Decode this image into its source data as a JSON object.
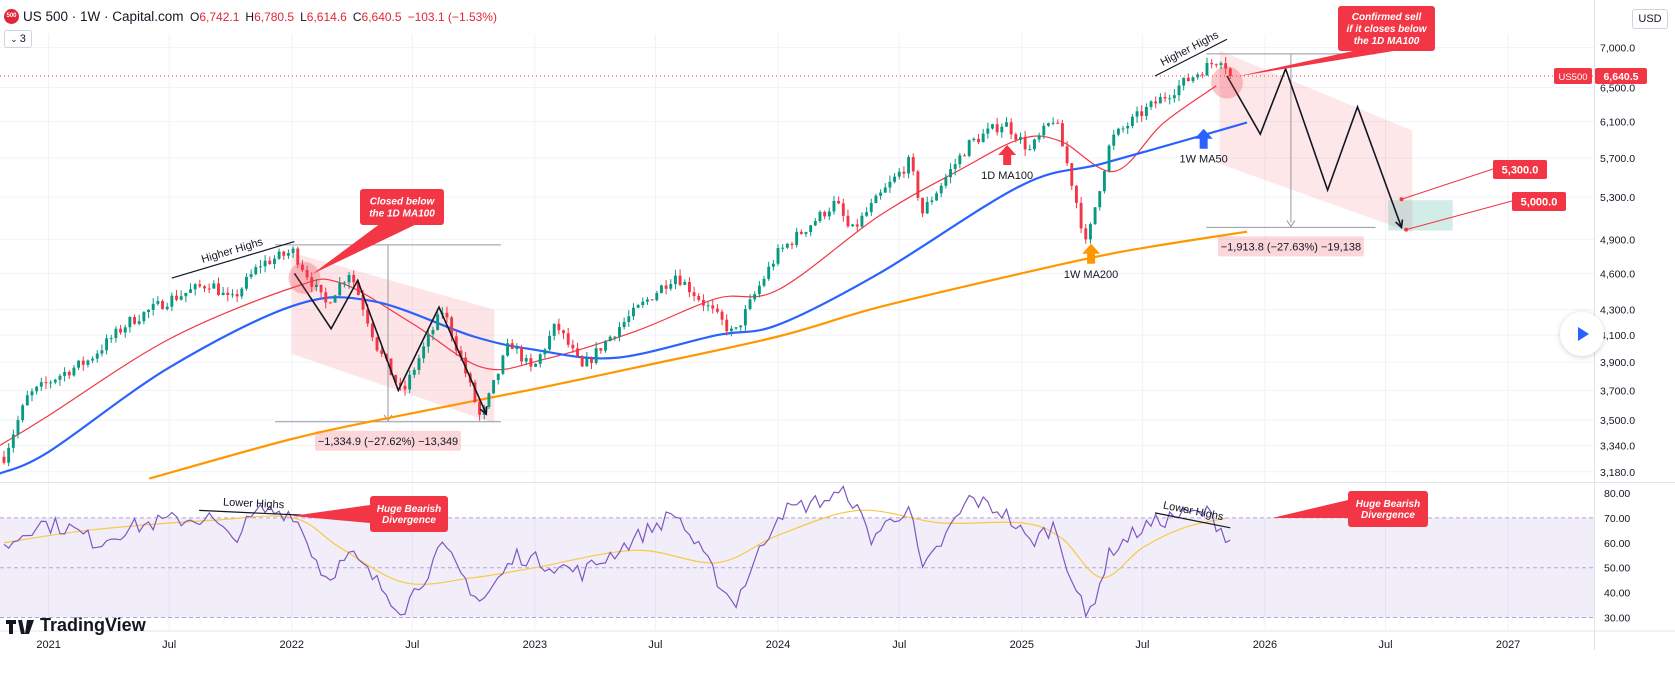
{
  "header": {
    "logo_text": "500",
    "title": "US 500 · 1W · Capital.com",
    "ohlc": [
      {
        "k": "O",
        "v": "6,742.1"
      },
      {
        "k": "H",
        "v": "6,780.5"
      },
      {
        "k": "L",
        "v": "6,614.6"
      },
      {
        "k": "C",
        "v": "6,640.5"
      },
      {
        "k": "",
        "v": "−103.1 (−1.53%)"
      }
    ],
    "indicator_count": "3",
    "currency": "USD"
  },
  "colors": {
    "up": "#089981",
    "down": "#f23645",
    "ma100_1d": "#f23645",
    "ma50_1w": "#2962ff",
    "ma200_1w": "#ff9800",
    "rsi": "#7e57c2",
    "rsi_ma": "#f7c948",
    "rsi_band": "#7e57c2",
    "callout": "#f23645"
  },
  "brand": "TradingView",
  "chart_data": [
    {
      "type": "candlestick",
      "symbol": "US 500",
      "interval": "1W",
      "y_scale": "log",
      "ylim": [
        3120,
        7180
      ],
      "y_ticks": [
        3180,
        3340,
        3500,
        3700,
        3900,
        4100,
        4300,
        4600,
        4900,
        5300,
        5700,
        6100,
        6500,
        7000
      ],
      "y_tick_labels": [
        "3,180.0",
        "3,340.0",
        "3,500.0",
        "3,700.0",
        "3,900.0",
        "4,100.0",
        "4,300.0",
        "4,600.0",
        "4,900.0",
        "5,300.0",
        "5,700.0",
        "6,100.0",
        "6,500.0",
        "7,000.0"
      ],
      "x_range": [
        "2020-10-20",
        "2027-05-10"
      ],
      "x_ticks": [
        {
          "date": "2021-01-01",
          "label": "2021"
        },
        {
          "date": "2021-07-01",
          "label": "Jul"
        },
        {
          "date": "2022-01-01",
          "label": "2022"
        },
        {
          "date": "2022-07-01",
          "label": "Jul"
        },
        {
          "date": "2023-01-01",
          "label": "2023"
        },
        {
          "date": "2023-07-01",
          "label": "Jul"
        },
        {
          "date": "2024-01-01",
          "label": "2024"
        },
        {
          "date": "2024-07-01",
          "label": "Jul"
        },
        {
          "date": "2025-01-01",
          "label": "2025"
        },
        {
          "date": "2025-07-01",
          "label": "Jul"
        },
        {
          "date": "2026-01-01",
          "label": "2026"
        },
        {
          "date": "2026-07-01",
          "label": "Jul"
        },
        {
          "date": "2027-01-01",
          "label": "2027"
        }
      ],
      "price_path": [
        [
          "2020-10-26",
          3270
        ],
        [
          "2020-12-01",
          3660
        ],
        [
          "2021-01-15",
          3800
        ],
        [
          "2021-03-01",
          3910
        ],
        [
          "2021-05-01",
          4200
        ],
        [
          "2021-07-01",
          4380
        ],
        [
          "2021-09-01",
          4520
        ],
        [
          "2021-10-01",
          4360
        ],
        [
          "2021-11-15",
          4680
        ],
        [
          "2022-01-03",
          4790
        ],
        [
          "2022-02-20",
          4340
        ],
        [
          "2022-03-29",
          4620
        ],
        [
          "2022-05-10",
          4000
        ],
        [
          "2022-06-16",
          3670
        ],
        [
          "2022-08-16",
          4300
        ],
        [
          "2022-10-12",
          3500
        ],
        [
          "2022-11-25",
          4050
        ],
        [
          "2022-12-28",
          3830
        ],
        [
          "2023-02-02",
          4180
        ],
        [
          "2023-03-13",
          3850
        ],
        [
          "2023-05-01",
          4130
        ],
        [
          "2023-07-31",
          4590
        ],
        [
          "2023-10-27",
          4100
        ],
        [
          "2023-12-31",
          4770
        ],
        [
          "2024-03-28",
          5250
        ],
        [
          "2024-04-19",
          4960
        ],
        [
          "2024-07-16",
          5660
        ],
        [
          "2024-08-05",
          5150
        ],
        [
          "2024-10-15",
          5860
        ],
        [
          "2024-12-06",
          6090
        ],
        [
          "2025-01-13",
          5780
        ],
        [
          "2025-02-19",
          6150
        ],
        [
          "2025-03-13",
          5560
        ],
        [
          "2025-04-08",
          4830
        ],
        [
          "2025-05-15",
          5900
        ],
        [
          "2025-06-30",
          6200
        ],
        [
          "2025-08-15",
          6460
        ],
        [
          "2025-10-08",
          6770
        ],
        [
          "2025-10-29",
          6880
        ],
        [
          "2025-11-10",
          6640
        ]
      ],
      "last_price": 6640.5,
      "last_price_label": "6,640.5",
      "symbol_tag": "US500",
      "moving_averages": [
        {
          "name": "1D MA100",
          "label": "1D MA100",
          "points": [
            [
              "2020-10-20",
              3340
            ],
            [
              "2021-01-01",
              3530
            ],
            [
              "2021-07-01",
              4070
            ],
            [
              "2022-01-03",
              4480
            ],
            [
              "2022-03-15",
              4520
            ],
            [
              "2022-07-01",
              4190
            ],
            [
              "2022-10-15",
              3860
            ],
            [
              "2023-01-15",
              3920
            ],
            [
              "2023-06-01",
              4130
            ],
            [
              "2023-10-01",
              4390
            ],
            [
              "2024-01-01",
              4460
            ],
            [
              "2024-06-01",
              5120
            ],
            [
              "2024-10-01",
              5580
            ],
            [
              "2025-01-01",
              5910
            ],
            [
              "2025-03-01",
              5880
            ],
            [
              "2025-05-20",
              5560
            ],
            [
              "2025-08-01",
              6080
            ],
            [
              "2025-10-20",
              6520
            ]
          ]
        },
        {
          "name": "1W MA50",
          "label": "1W MA50",
          "points": [
            [
              "2020-10-20",
              3170
            ],
            [
              "2021-01-01",
              3300
            ],
            [
              "2021-07-01",
              3860
            ],
            [
              "2022-01-03",
              4330
            ],
            [
              "2022-05-01",
              4370
            ],
            [
              "2022-10-01",
              4090
            ],
            [
              "2023-01-01",
              3990
            ],
            [
              "2023-05-01",
              3930
            ],
            [
              "2023-10-01",
              4100
            ],
            [
              "2024-01-01",
              4180
            ],
            [
              "2024-06-01",
              4600
            ],
            [
              "2025-01-01",
              5420
            ],
            [
              "2025-05-01",
              5640
            ],
            [
              "2025-10-01",
              5950
            ],
            [
              "2025-12-05",
              6090
            ]
          ]
        },
        {
          "name": "1W MA200",
          "label": "1W MA200",
          "points": [
            [
              "2021-06-01",
              3140
            ],
            [
              "2022-01-01",
              3380
            ],
            [
              "2022-06-01",
              3520
            ],
            [
              "2023-01-01",
              3710
            ],
            [
              "2023-06-01",
              3860
            ],
            [
              "2024-01-01",
              4090
            ],
            [
              "2024-06-01",
              4320
            ],
            [
              "2025-01-01",
              4600
            ],
            [
              "2025-06-01",
              4790
            ],
            [
              "2025-12-05",
              4970
            ]
          ]
        }
      ],
      "annotations": {
        "higher_highs_2021": {
          "text": "Higher Highs",
          "from": [
            "2021-07-05",
            4560
          ],
          "to": [
            "2022-01-05",
            4880
          ]
        },
        "higher_highs_2025": {
          "text": "Higher Highs",
          "from": [
            "2025-07-20",
            6640
          ],
          "to": [
            "2025-11-05",
            7110
          ]
        },
        "callout_2022": {
          "text": "Closed below\nthe 1D MA100",
          "anchor": [
            "2022-01-20",
            4560
          ]
        },
        "callout_2025": {
          "text": "Confirmed sell\nif it closes below\nthe 1D MA100",
          "anchor": [
            "2025-11-05",
            6560
          ]
        },
        "label_1d_ma100": {
          "text": "1D MA100",
          "anchor": [
            "2024-12-10",
            5840
          ]
        },
        "label_1w_ma50": {
          "text": "1W MA50",
          "anchor": [
            "2025-10-01",
            6020
          ]
        },
        "label_1w_ma200": {
          "text": "1W MA200",
          "anchor": [
            "2025-04-15",
            4860
          ]
        },
        "channel_2022": {
          "top": [
            [
              "2022-01-01",
              4780
            ],
            [
              "2022-11-01",
              4300
            ]
          ],
          "bottom": [
            [
              "2022-01-01",
              3960
            ],
            [
              "2022-11-01",
              3480
            ]
          ]
        },
        "zigzag_2022": [
          [
            "2022-01-05",
            4600
          ],
          [
            "2022-03-01",
            4150
          ],
          [
            "2022-04-10",
            4540
          ],
          [
            "2022-06-10",
            3700
          ],
          [
            "2022-08-10",
            4320
          ],
          [
            "2022-10-20",
            3540
          ]
        ],
        "measure_2022": {
          "from": [
            "2022-01-03",
            4850
          ],
          "to": [
            "2022-10-15",
            3490
          ],
          "label": "−1,334.9 (−27.62%) −13,349"
        },
        "channel_2026": {
          "top": [
            [
              "2025-10-25",
              6960
            ],
            [
              "2026-08-10",
              6000
            ]
          ],
          "bottom": [
            [
              "2025-10-25",
              5640
            ],
            [
              "2026-08-10",
              4960
            ]
          ]
        },
        "zigzag_2026": [
          [
            "2025-11-05",
            6640
          ],
          [
            "2025-12-25",
            5960
          ],
          [
            "2026-02-01",
            6730
          ],
          [
            "2026-04-05",
            5370
          ],
          [
            "2026-05-20",
            6270
          ],
          [
            "2026-07-25",
            5010
          ]
        ],
        "measure_2026": {
          "from": [
            "2025-11-01",
            6920
          ],
          "to": [
            "2026-05-20",
            5010
          ],
          "label": "−1,913.8 (−27.63%) −19,138"
        },
        "target_zone": {
          "from": [
            "2026-07-05",
            5270
          ],
          "to": [
            "2026-10-10",
            4980
          ]
        },
        "target_1": {
          "text": "5,300.0",
          "anchor": [
            "2026-07-25",
            5280
          ]
        },
        "target_2": {
          "text": "5,000.0",
          "anchor": [
            "2026-08-01",
            4990
          ]
        }
      }
    },
    {
      "type": "line",
      "name": "RSI",
      "ylim": [
        25,
        84
      ],
      "y_ticks": [
        30,
        40,
        50,
        60,
        70,
        80
      ],
      "y_tick_labels": [
        "30.00",
        "40.00",
        "50.00",
        "60.00",
        "70.00",
        "80.00"
      ],
      "band": [
        30,
        70
      ],
      "midline": 50,
      "rsi_path": [
        [
          "2020-10-26",
          58
        ],
        [
          "2020-12-15",
          68
        ],
        [
          "2021-02-01",
          66
        ],
        [
          "2021-03-15",
          60
        ],
        [
          "2021-05-01",
          66
        ],
        [
          "2021-07-01",
          69
        ],
        [
          "2021-09-01",
          70
        ],
        [
          "2021-10-01",
          61
        ],
        [
          "2021-11-15",
          73
        ],
        [
          "2022-01-03",
          72
        ],
        [
          "2022-02-20",
          46
        ],
        [
          "2022-04-01",
          55
        ],
        [
          "2022-06-16",
          33
        ],
        [
          "2022-08-16",
          58
        ],
        [
          "2022-10-12",
          36
        ],
        [
          "2022-12-05",
          55
        ],
        [
          "2023-03-13",
          48
        ],
        [
          "2023-07-31",
          72
        ],
        [
          "2023-10-27",
          35
        ],
        [
          "2024-01-01",
          72
        ],
        [
          "2024-04-15",
          80
        ],
        [
          "2024-05-20",
          62
        ],
        [
          "2024-07-15",
          75
        ],
        [
          "2024-08-05",
          48
        ],
        [
          "2024-10-15",
          78
        ],
        [
          "2024-12-06",
          72
        ],
        [
          "2025-01-13",
          60
        ],
        [
          "2025-02-19",
          67
        ],
        [
          "2025-04-08",
          29
        ],
        [
          "2025-05-15",
          57
        ],
        [
          "2025-07-01",
          66
        ],
        [
          "2025-08-20",
          71
        ],
        [
          "2025-10-08",
          72
        ],
        [
          "2025-11-10",
          61
        ]
      ],
      "rsi_ma_path": [
        [
          "2020-10-26",
          60
        ],
        [
          "2021-03-01",
          65
        ],
        [
          "2021-09-01",
          69
        ],
        [
          "2022-01-03",
          70
        ],
        [
          "2022-03-15",
          58
        ],
        [
          "2022-06-20",
          44
        ],
        [
          "2022-10-01",
          46
        ],
        [
          "2023-01-01",
          50
        ],
        [
          "2023-06-01",
          57
        ],
        [
          "2023-10-01",
          52
        ],
        [
          "2024-01-01",
          63
        ],
        [
          "2024-05-01",
          73
        ],
        [
          "2024-09-01",
          68
        ],
        [
          "2025-01-01",
          68
        ],
        [
          "2025-03-01",
          62
        ],
        [
          "2025-05-01",
          46
        ],
        [
          "2025-07-01",
          58
        ],
        [
          "2025-09-01",
          66
        ],
        [
          "2025-11-05",
          70
        ]
      ],
      "annotations": {
        "lower_highs_2021": {
          "text": "Lower Highs",
          "from": [
            "2021-08-15",
            73
          ],
          "to": [
            "2022-01-25",
            71
          ]
        },
        "lower_highs_2025": {
          "text": "Lower Highs",
          "from": [
            "2025-07-20",
            72
          ],
          "to": [
            "2025-11-10",
            66
          ]
        },
        "divergence_2021": {
          "text": "Huge Bearish\nDivergence"
        },
        "divergence_2025": {
          "text": "Huge Bearish\nDivergence"
        }
      }
    }
  ]
}
